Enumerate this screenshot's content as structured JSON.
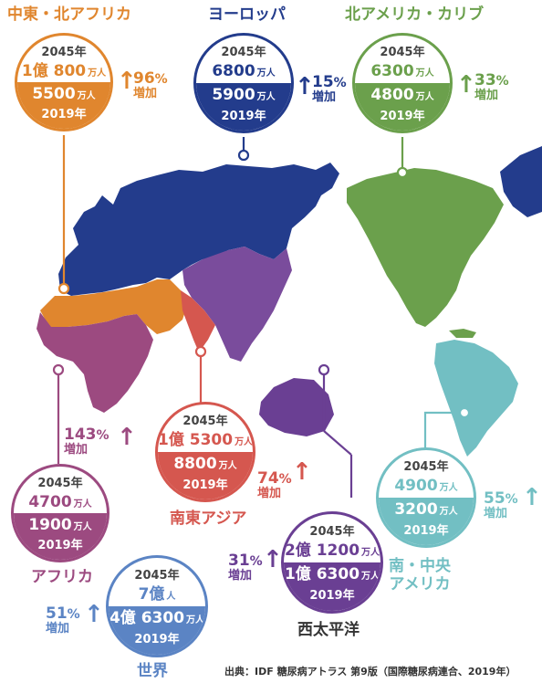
{
  "colors": {
    "mena": "#E0862E",
    "europe": "#233C8C",
    "nac": "#6BA04C",
    "africa": "#9C4A80",
    "sea": "#D5574F",
    "wp": "#6A3F93",
    "sacaa": "#72BFC3",
    "world": "#5B84C4"
  },
  "regions": {
    "mena": {
      "name": "中東・北アフリカ",
      "y2045": "2045年",
      "v2045": "1億 800",
      "v2019": "5500",
      "unit": "万人",
      "y2019": "2019年",
      "pct": "96",
      "pct_sym": "%",
      "inc": "増加"
    },
    "europe": {
      "name": "ヨーロッパ",
      "y2045": "2045年",
      "v2045": "6800",
      "v2019": "5900",
      "unit": "万人",
      "y2019": "2019年",
      "pct": "15",
      "pct_sym": "%",
      "inc": "増加"
    },
    "nac": {
      "name": "北アメリカ・カリブ",
      "y2045": "2045年",
      "v2045": "6300",
      "v2019": "4800",
      "unit": "万人",
      "y2019": "2019年",
      "pct": "33",
      "pct_sym": "%",
      "inc": "増加"
    },
    "africa": {
      "name": "アフリカ",
      "y2045": "2045年",
      "v2045": "4700",
      "v2019": "1900",
      "unit": "万人",
      "y2019": "2019年",
      "pct": "143",
      "pct_sym": "%",
      "inc": "増加"
    },
    "sea": {
      "name": "南東アジア",
      "y2045": "2045年",
      "v2045": "1億 5300",
      "v2019": "8800",
      "unit": "万人",
      "y2019": "2019年",
      "pct": "74",
      "pct_sym": "%",
      "inc": "増加"
    },
    "wp": {
      "name": "西太平洋",
      "y2045": "2045年",
      "v2045": "2億 1200",
      "v2019": "1億 6300",
      "unit": "万人",
      "y2019": "2019年",
      "pct": "31",
      "pct_sym": "%",
      "inc": "増加"
    },
    "sacaa": {
      "name": "南・中央\nアメリカ",
      "y2045": "2045年",
      "v2045": "4900",
      "v2019": "3200",
      "unit": "万人",
      "y2019": "2019年",
      "pct": "55",
      "pct_sym": "%",
      "inc": "増加"
    },
    "world": {
      "name": "世界",
      "y2045": "2045年",
      "v2045": "7億",
      "v2045_unit": "人",
      "v2019": "4億 6300",
      "unit": "万人",
      "y2019": "2019年",
      "pct": "51",
      "pct_sym": "%",
      "inc": "増加"
    }
  },
  "arrow_glyph": "↑",
  "source": "出典：IDF 糖尿病アトラス 第9版（国際糖尿病連合、2019年）"
}
